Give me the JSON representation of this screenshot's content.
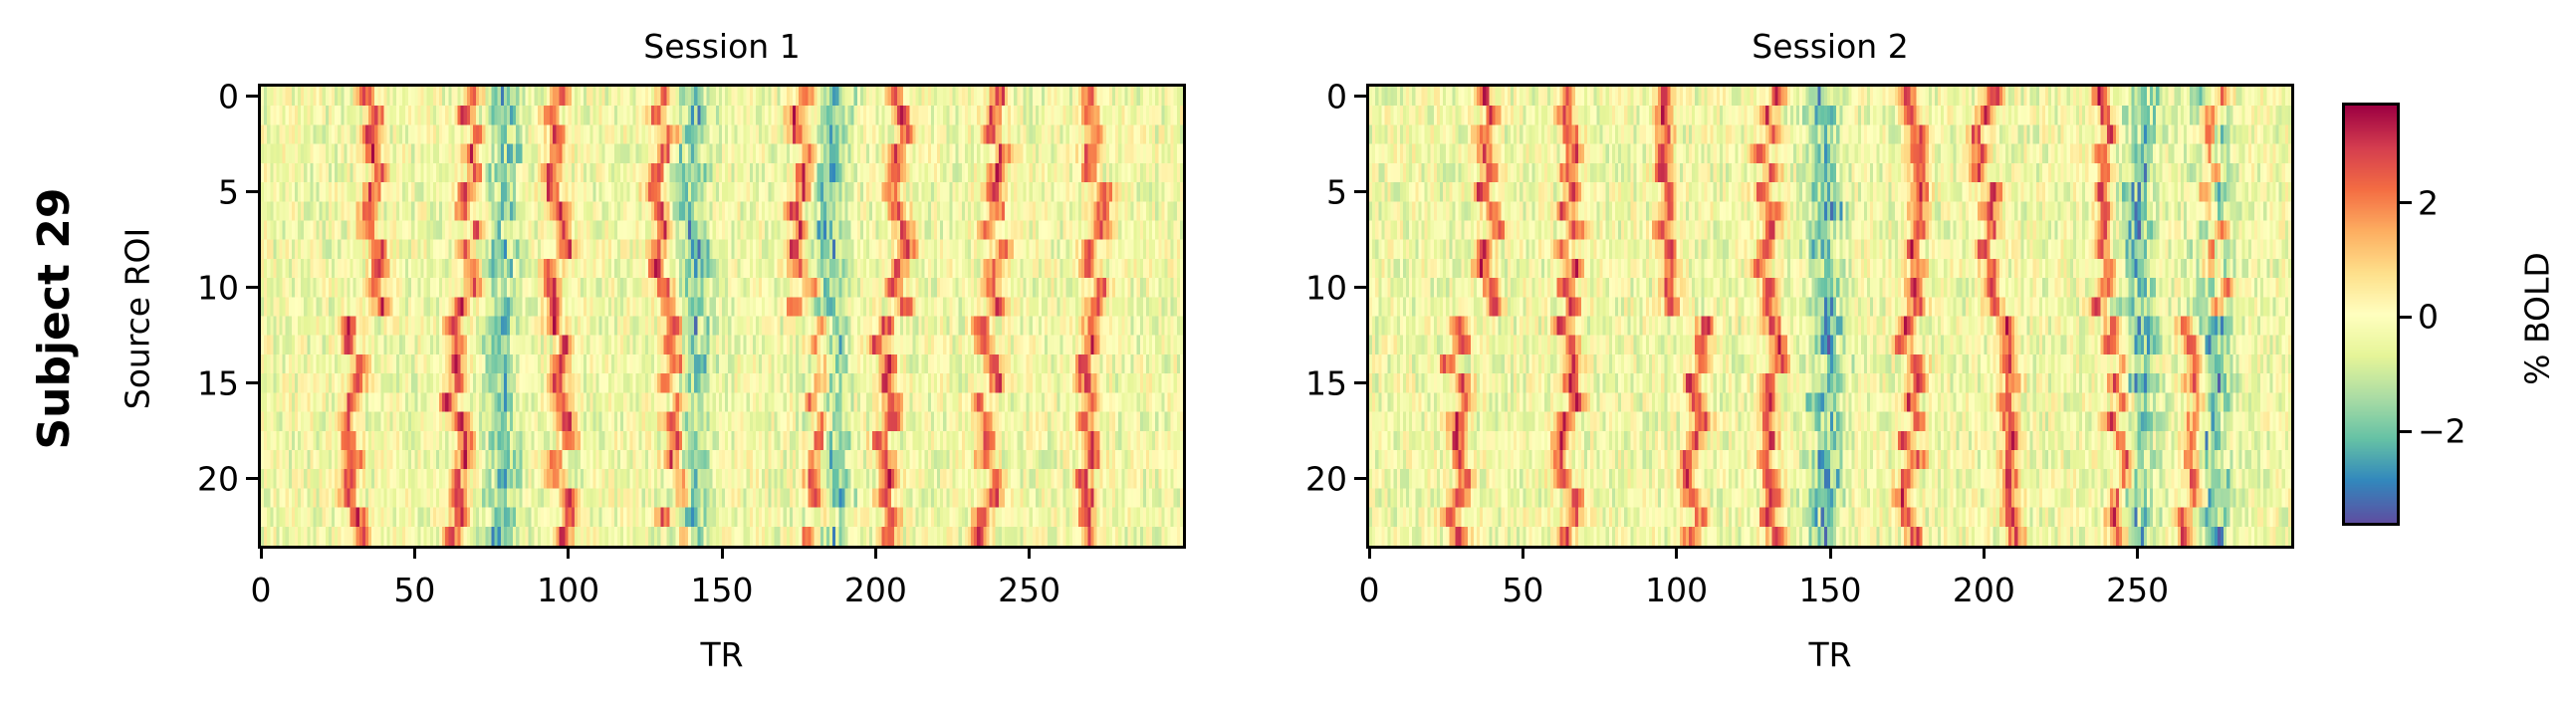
{
  "figure": {
    "row_label": "Subject 29",
    "colorbar": {
      "label": "% BOLD",
      "ticks": [
        {
          "value": 2,
          "label": "2"
        },
        {
          "value": 0,
          "label": "0"
        },
        {
          "value": -2,
          "label": "−2"
        }
      ],
      "vmin": -3.6,
      "vmax": 3.7,
      "colormap": "Spectral_r"
    },
    "panels": [
      {
        "title": "Session 1",
        "xlabel": "TR",
        "ylabel": "Source ROI",
        "xticks": [
          "0",
          "50",
          "100",
          "150",
          "200",
          "250"
        ],
        "yticks": [
          "0",
          "5",
          "10",
          "15",
          "20"
        ]
      },
      {
        "title": "Session 2",
        "xlabel": "TR",
        "ylabel": "",
        "xticks": [
          "0",
          "50",
          "100",
          "150",
          "200",
          "250"
        ],
        "yticks": [
          "0",
          "5",
          "10",
          "15",
          "20"
        ]
      }
    ]
  },
  "chart_data": [
    {
      "type": "heatmap",
      "title": "Session 1",
      "xlabel": "TR",
      "ylabel": "Source ROI",
      "x_range": [
        0,
        299
      ],
      "y_range": [
        0,
        23
      ],
      "xticks": [
        0,
        50,
        100,
        150,
        200,
        250
      ],
      "yticks": [
        0,
        5,
        10,
        15,
        20
      ],
      "n_rows": 24,
      "n_cols": 300,
      "value_label": "% BOLD",
      "clim": [
        -3.6,
        3.7
      ],
      "events": {
        "positive_peaks_rows_0_11": [
          36,
          67,
          96,
          130,
          176,
          207,
          238,
          271
        ],
        "positive_peaks_rows_12_23": [
          30,
          63,
          98,
          134,
          180,
          203,
          236,
          268
        ],
        "negative_troughs": [
          78,
          140,
          185
        ],
        "peak_amplitude": 3.0,
        "trough_amplitude": -2.5
      },
      "seed": 29
    },
    {
      "type": "heatmap",
      "title": "Session 2",
      "xlabel": "TR",
      "ylabel": "",
      "x_range": [
        0,
        299
      ],
      "y_range": [
        0,
        23
      ],
      "xticks": [
        0,
        50,
        100,
        150,
        200,
        250
      ],
      "yticks": [
        0,
        5,
        10,
        15,
        20
      ],
      "n_rows": 24,
      "n_cols": 300,
      "value_label": "% BOLD",
      "clim": [
        -3.6,
        3.7
      ],
      "events": {
        "positive_peaks_rows_0_11": [
          38,
          64,
          96,
          130,
          178,
          200,
          238,
          275
        ],
        "positive_peaks_rows_12_23": [
          28,
          64,
          106,
          130,
          175,
          208,
          243,
          267
        ],
        "negative_troughs": [
          148,
          250,
          274
        ],
        "peak_amplitude": 3.0,
        "trough_amplitude": -2.8
      },
      "seed": 58
    }
  ]
}
